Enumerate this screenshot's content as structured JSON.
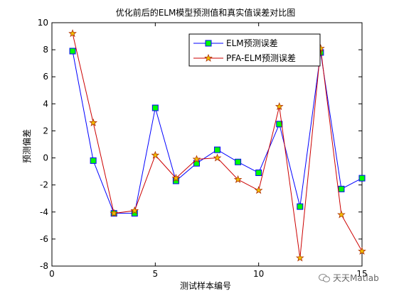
{
  "chart_data": {
    "type": "line",
    "title": "优化前后的ELM模型预测值和真实值误差对比图",
    "xlabel": "测试样本编号",
    "ylabel": "预测偏差",
    "xlim": [
      0,
      15
    ],
    "ylim": [
      -8,
      10
    ],
    "xticks": [
      0,
      5,
      10,
      15
    ],
    "yticks": [
      -8,
      -6,
      -4,
      -2,
      0,
      2,
      4,
      6,
      8,
      10
    ],
    "grid": false,
    "legend_position": "top-right",
    "x": [
      1,
      2,
      3,
      4,
      5,
      6,
      7,
      8,
      9,
      10,
      11,
      12,
      13,
      14,
      15
    ],
    "series": [
      {
        "name": "ELM预测误差",
        "line_color": "#0000ff",
        "marker": "square",
        "marker_fill": "#00ff00",
        "marker_edge": "#0000ff",
        "values": [
          7.9,
          -0.2,
          -4.1,
          -4.1,
          3.7,
          -1.7,
          -0.4,
          0.6,
          -0.3,
          -1.1,
          2.5,
          -3.6,
          7.8,
          -2.3,
          -1.5
        ]
      },
      {
        "name": "PFA-ELM预测误差",
        "line_color": "#cc0000",
        "marker": "star",
        "marker_fill": "#f0c000",
        "marker_edge": "#b03000",
        "values": [
          9.2,
          2.6,
          -4.1,
          -3.9,
          0.2,
          -1.5,
          -0.1,
          0.0,
          -1.6,
          -2.4,
          3.8,
          -7.4,
          8.1,
          -4.2,
          -6.9
        ]
      }
    ]
  },
  "watermark": {
    "text": "天天Matlab",
    "icon": "wechat-icon"
  }
}
